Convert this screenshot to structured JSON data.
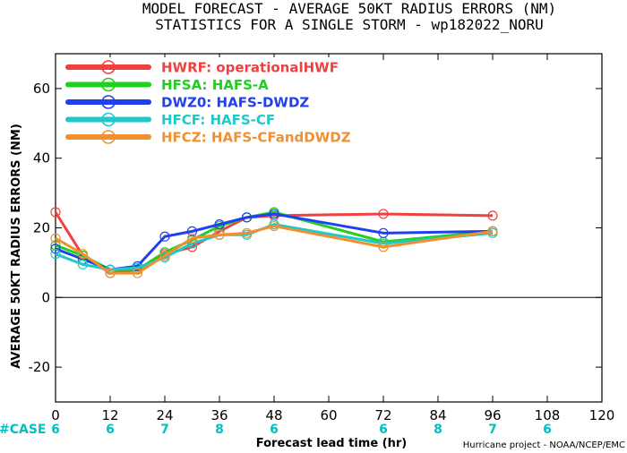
{
  "title_line1": "MODEL FORECAST - AVERAGE 50KT RADIUS ERRORS (NM)",
  "title_line2": "STATISTICS FOR A SINGLE STORM - wp182022_NORU",
  "case_label": "#CASE",
  "credit": "Hurricane project - NOAA/NCEP/EMC",
  "colors": {
    "HWRF": "#f04040",
    "HFSA": "#20d020",
    "DWZ0": "#2040f0",
    "HFCF": "#20c8c8",
    "HFCZ": "#f09030",
    "case": "#00c0c0"
  },
  "chart_data": {
    "type": "line",
    "xlabel": "Forecast lead time (hr)",
    "ylabel": "AVERAGE 50KT RADIUS ERRORS (NM)",
    "xlim": [
      0,
      120
    ],
    "ylim": [
      -30,
      70
    ],
    "xticks": [
      0,
      12,
      24,
      36,
      48,
      60,
      72,
      84,
      96,
      108,
      120
    ],
    "yticks": [
      -20,
      0,
      20,
      40,
      60
    ],
    "zero_line": true,
    "legend_position": "top-left",
    "series": [
      {
        "name": "HWRF: operationalHWF",
        "key": "HWRF",
        "x": [
          0,
          6,
          12,
          18,
          24,
          30,
          36,
          42,
          48,
          72,
          96
        ],
        "y": [
          24.5,
          12.0,
          7.0,
          8.0,
          12.5,
          14.5,
          19.0,
          23.0,
          23.5,
          24.0,
          23.5
        ]
      },
      {
        "name": "HFSA: HAFS-A",
        "key": "HFSA",
        "x": [
          0,
          6,
          12,
          18,
          24,
          30,
          36,
          42,
          48,
          72,
          96
        ],
        "y": [
          15.0,
          12.0,
          8.0,
          8.0,
          13.0,
          16.5,
          20.5,
          23.0,
          24.5,
          16.0,
          19.0
        ]
      },
      {
        "name": "DWZ0: HAFS-DWDZ",
        "key": "DWZ0",
        "x": [
          0,
          6,
          12,
          18,
          24,
          30,
          36,
          42,
          48,
          72,
          96
        ],
        "y": [
          14.0,
          11.0,
          8.0,
          9.0,
          17.5,
          19.0,
          21.0,
          23.0,
          24.0,
          18.5,
          19.0
        ]
      },
      {
        "name": "HFCF: HAFS-CF",
        "key": "HFCF",
        "x": [
          0,
          6,
          12,
          18,
          24,
          30,
          36,
          42,
          48,
          72,
          96
        ],
        "y": [
          12.5,
          9.5,
          8.0,
          8.5,
          11.5,
          15.5,
          18.0,
          18.0,
          21.0,
          15.5,
          18.5
        ]
      },
      {
        "name": "HFCZ: HAFS-CFandDWDZ",
        "key": "HFCZ",
        "x": [
          0,
          6,
          12,
          18,
          24,
          30,
          36,
          42,
          48,
          72,
          96
        ],
        "y": [
          17.0,
          12.5,
          7.0,
          7.0,
          12.0,
          17.0,
          18.0,
          18.5,
          20.5,
          14.5,
          19.0
        ]
      }
    ],
    "cases": [
      {
        "x": 0,
        "n": 6
      },
      {
        "x": 12,
        "n": 6
      },
      {
        "x": 24,
        "n": 7
      },
      {
        "x": 36,
        "n": 8
      },
      {
        "x": 48,
        "n": 6
      },
      {
        "x": 72,
        "n": 6
      },
      {
        "x": 84,
        "n": 8
      },
      {
        "x": 96,
        "n": 7
      },
      {
        "x": 108,
        "n": 6
      }
    ]
  }
}
